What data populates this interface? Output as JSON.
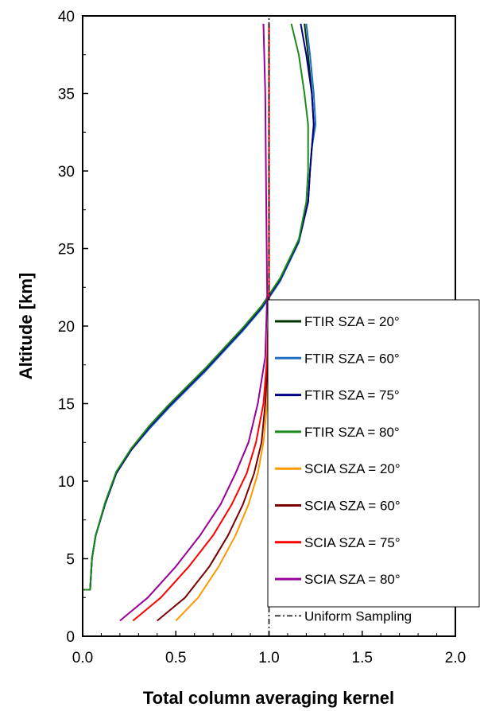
{
  "chart_data": {
    "type": "line",
    "xlabel": "Total column averaging kernel",
    "ylabel": "Altitude [km]",
    "xlim": [
      0,
      2
    ],
    "ylim": [
      0,
      40
    ],
    "x_ticks": [
      "0.0",
      "0.5",
      "1.0",
      "1.5",
      "2.0"
    ],
    "y_ticks": [
      "0",
      "5",
      "10",
      "15",
      "20",
      "25",
      "30",
      "35",
      "40"
    ],
    "grid": false,
    "legend_position": "right",
    "series": [
      {
        "name": "FTIR SZA = 20°",
        "color": "#003300",
        "x": [
          0.0,
          0.0,
          0.04,
          0.05,
          0.07,
          0.12,
          0.18,
          0.26,
          0.36,
          0.46,
          0.56,
          0.66,
          0.76,
          0.86,
          0.96,
          1.06,
          1.16,
          1.21,
          1.22,
          1.23,
          1.24,
          1.23,
          1.21,
          1.19
        ],
        "y": [
          1.0,
          3.0,
          3.0,
          5.0,
          6.5,
          8.5,
          10.5,
          12.0,
          13.5,
          14.8,
          16.0,
          17.2,
          18.5,
          19.8,
          21.2,
          23.0,
          25.5,
          28.0,
          30.0,
          31.5,
          33.0,
          35.0,
          37.5,
          39.5
        ]
      },
      {
        "name": "FTIR SZA = 60°",
        "color": "#1f6fc5",
        "x": [
          0.0,
          0.0,
          0.04,
          0.05,
          0.07,
          0.12,
          0.18,
          0.26,
          0.36,
          0.46,
          0.56,
          0.66,
          0.76,
          0.86,
          0.96,
          1.06,
          1.16,
          1.21,
          1.22,
          1.23,
          1.25,
          1.24,
          1.22,
          1.2
        ],
        "y": [
          1.0,
          3.0,
          3.0,
          5.0,
          6.5,
          8.5,
          10.5,
          12.0,
          13.4,
          14.7,
          15.9,
          17.1,
          18.4,
          19.7,
          21.1,
          22.9,
          25.4,
          28.0,
          30.0,
          31.5,
          33.0,
          35.0,
          37.5,
          39.5
        ]
      },
      {
        "name": "FTIR SZA = 75°",
        "color": "#000080",
        "x": [
          0.0,
          0.0,
          0.04,
          0.05,
          0.07,
          0.12,
          0.18,
          0.26,
          0.36,
          0.46,
          0.56,
          0.66,
          0.76,
          0.86,
          0.96,
          1.06,
          1.16,
          1.21,
          1.22,
          1.23,
          1.24,
          1.23,
          1.2,
          1.17
        ],
        "y": [
          1.0,
          3.0,
          3.0,
          5.0,
          6.5,
          8.5,
          10.5,
          12.0,
          13.5,
          14.8,
          16.0,
          17.2,
          18.5,
          19.8,
          21.2,
          23.0,
          25.5,
          28.0,
          30.0,
          31.5,
          33.0,
          35.0,
          37.5,
          39.5
        ]
      },
      {
        "name": "FTIR SZA = 80°",
        "color": "#1a8a1a",
        "x": [
          0.0,
          0.0,
          0.04,
          0.05,
          0.07,
          0.12,
          0.18,
          0.26,
          0.36,
          0.46,
          0.56,
          0.66,
          0.76,
          0.86,
          0.96,
          1.06,
          1.16,
          1.2,
          1.21,
          1.21,
          1.21,
          1.19,
          1.16,
          1.12
        ],
        "y": [
          1.0,
          3.0,
          3.0,
          5.0,
          6.5,
          8.6,
          10.6,
          12.1,
          13.6,
          14.9,
          16.1,
          17.3,
          18.6,
          19.9,
          21.3,
          23.1,
          25.6,
          28.0,
          30.0,
          31.5,
          33.0,
          35.0,
          37.5,
          39.5
        ]
      },
      {
        "name": "SCIA SZA = 20°",
        "color": "#ff9900",
        "x": [
          0.5,
          0.62,
          0.73,
          0.82,
          0.89,
          0.94,
          0.97,
          0.99,
          1.0,
          1.0,
          1.0
        ],
        "y": [
          1.0,
          2.5,
          4.5,
          6.5,
          8.5,
          10.5,
          12.5,
          15.0,
          18.0,
          22.0,
          39.5
        ]
      },
      {
        "name": "SCIA SZA = 60°",
        "color": "#7a0000",
        "x": [
          0.4,
          0.55,
          0.68,
          0.78,
          0.86,
          0.92,
          0.96,
          0.98,
          0.995,
          1.0,
          1.0
        ],
        "y": [
          1.0,
          2.5,
          4.5,
          6.5,
          8.5,
          10.5,
          12.5,
          15.0,
          18.0,
          22.0,
          39.5
        ]
      },
      {
        "name": "SCIA SZA = 75°",
        "color": "#ff0000",
        "x": [
          0.27,
          0.42,
          0.57,
          0.7,
          0.8,
          0.88,
          0.93,
          0.97,
          0.99,
          1.0,
          1.0
        ],
        "y": [
          1.0,
          2.5,
          4.5,
          6.5,
          8.5,
          10.5,
          12.5,
          15.0,
          18.0,
          22.0,
          39.5
        ]
      },
      {
        "name": "SCIA SZA = 80°",
        "color": "#990099",
        "x": [
          0.2,
          0.35,
          0.5,
          0.63,
          0.74,
          0.82,
          0.89,
          0.94,
          0.98,
          0.99,
          0.985,
          0.98,
          0.97
        ],
        "y": [
          1.0,
          2.5,
          4.5,
          6.5,
          8.5,
          10.5,
          12.5,
          15.0,
          18.0,
          22.0,
          28.0,
          35.0,
          39.5
        ]
      },
      {
        "name": "Uniform Sampling",
        "color": "#000000",
        "dash": "dashdot",
        "x": [
          1.0,
          1.0
        ],
        "y": [
          0.0,
          40.0
        ]
      }
    ]
  }
}
